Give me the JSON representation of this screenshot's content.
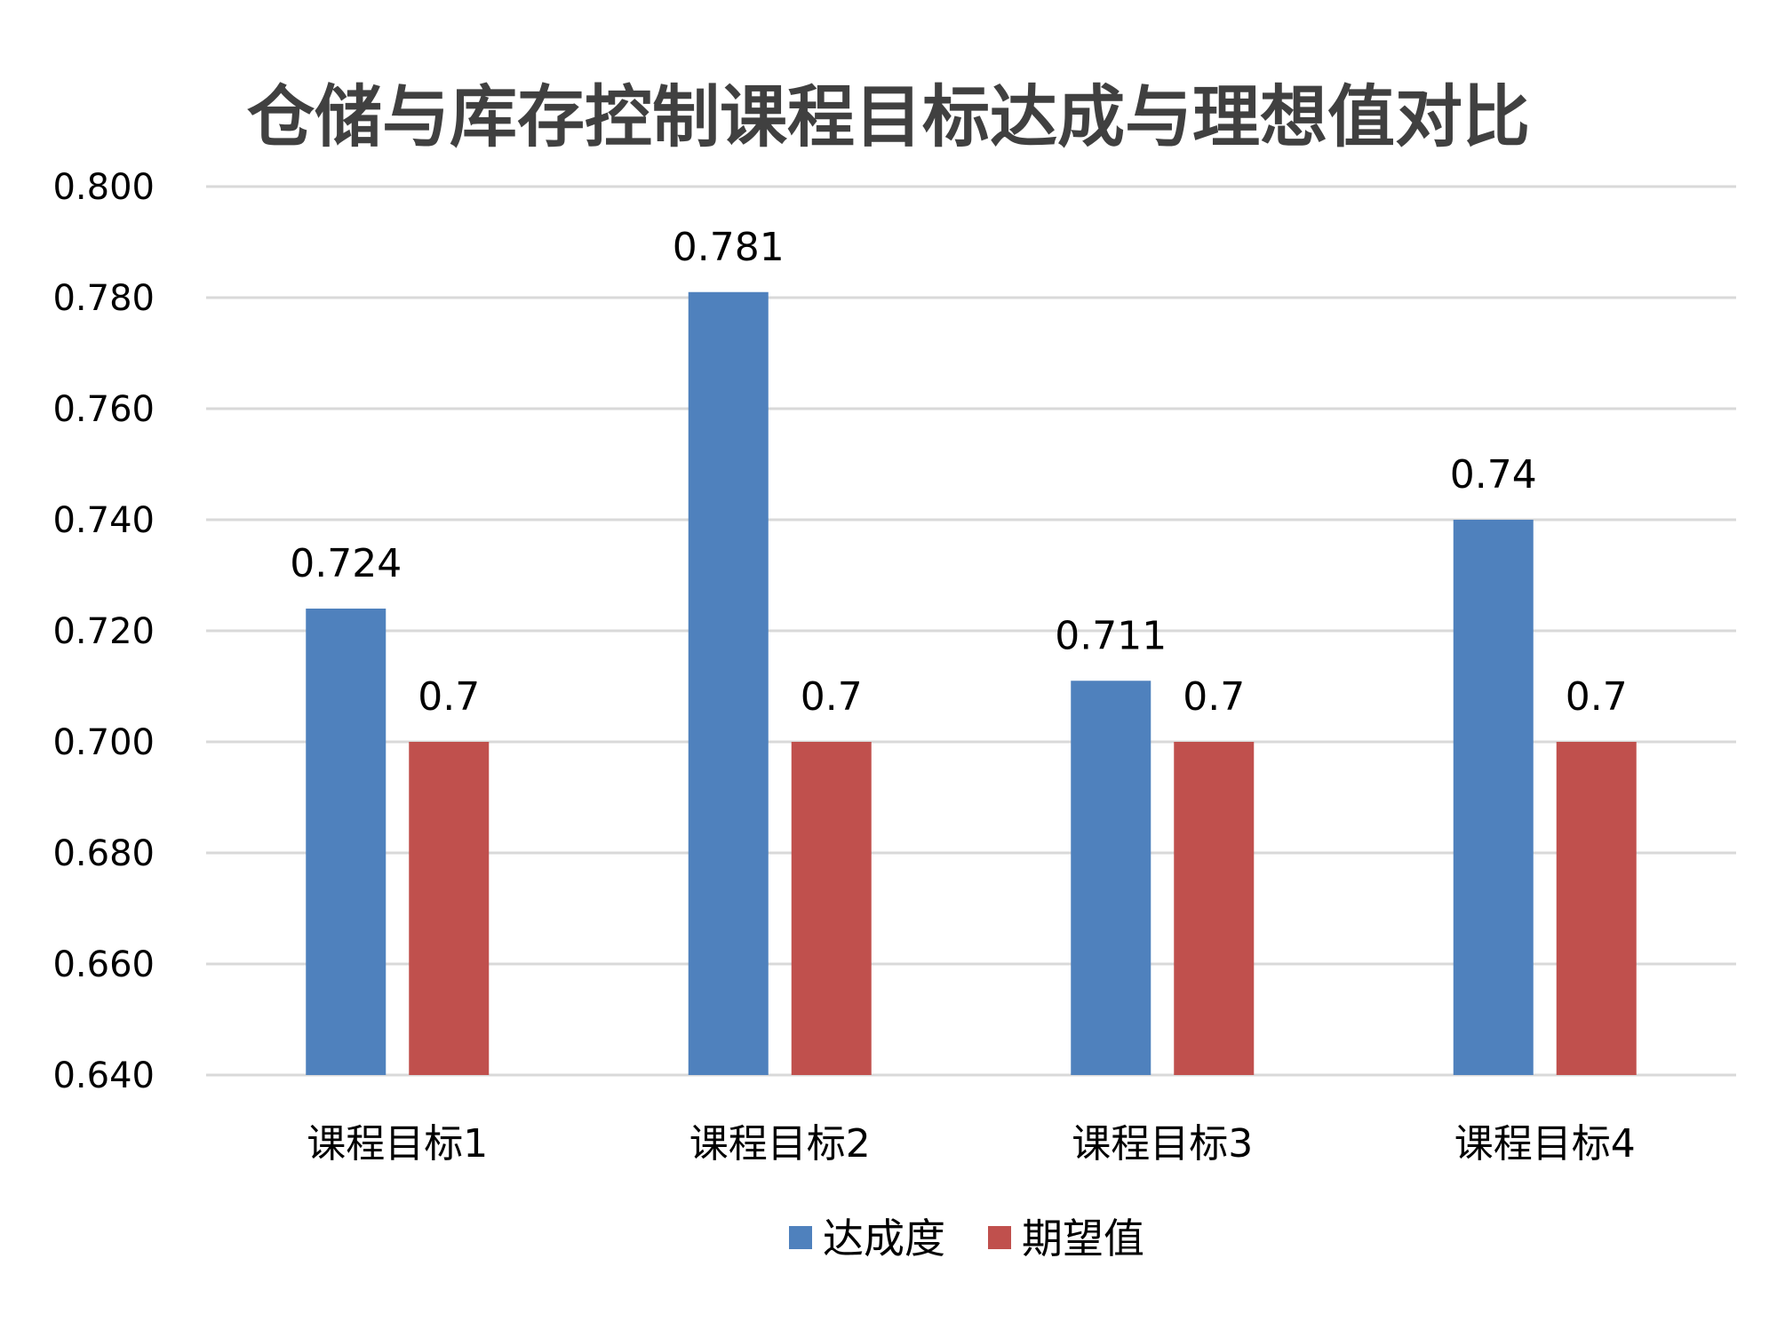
{
  "chart_data": {
    "type": "bar",
    "title": "仓储与库存控制课程目标达成与理想值对比",
    "categories": [
      "课程目标1",
      "课程目标2",
      "课程目标3",
      "课程目标4"
    ],
    "series": [
      {
        "name": "达成度",
        "values": [
          0.724,
          0.781,
          0.711,
          0.74
        ],
        "labels": [
          "0.724",
          "0.781",
          "0.711",
          "0.74"
        ],
        "color": "#4f81bd"
      },
      {
        "name": "期望值",
        "values": [
          0.7,
          0.7,
          0.7,
          0.7
        ],
        "labels": [
          "0.7",
          "0.7",
          "0.7",
          "0.7"
        ],
        "color": "#c0504d"
      }
    ],
    "ylim": [
      0.64,
      0.8
    ],
    "yticks": [
      "0.640",
      "0.660",
      "0.680",
      "0.700",
      "0.720",
      "0.740",
      "0.760",
      "0.780",
      "0.800"
    ],
    "xlabel": "",
    "ylabel": "",
    "grid": true,
    "legend": "bottom-center"
  }
}
